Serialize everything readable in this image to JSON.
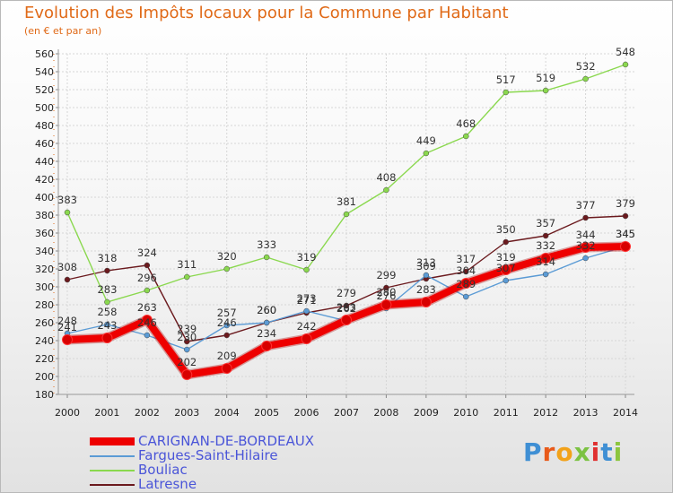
{
  "header": {
    "title": "Evolution des Impôts locaux pour la Commune par Habitant",
    "subtitle": "(en € et par an)"
  },
  "chart_data": {
    "type": "line",
    "title": "Evolution des Impôts locaux pour la Commune par Habitant",
    "ylabel": "(en € et par an)",
    "xlabel": "",
    "ylim": [
      180,
      560
    ],
    "ytick_step": 20,
    "grid": true,
    "categories": [
      "2000",
      "2001",
      "2002",
      "2003",
      "2004",
      "2005",
      "2006",
      "2007",
      "2008",
      "2009",
      "2010",
      "2011",
      "2012",
      "2013",
      "2014"
    ],
    "series": [
      {
        "name": "Latresne",
        "color": "#6b1a1e",
        "values": [
          308,
          318,
          324,
          239,
          246,
          260,
          271,
          279,
          299,
          309,
          317,
          350,
          357,
          377,
          379
        ]
      },
      {
        "name": "Bouliac",
        "color": "#8ad84e",
        "values": [
          383,
          283,
          296,
          311,
          320,
          333,
          319,
          381,
          408,
          449,
          468,
          517,
          519,
          532,
          548
        ]
      },
      {
        "name": "Fargues-Saint-Hilaire",
        "color": "#5b9bd5",
        "values": [
          248,
          258,
          246,
          230,
          257,
          260,
          273,
          262,
          276,
          313,
          289,
          307,
          314,
          332,
          345
        ]
      },
      {
        "name": "CARIGNAN-DE-BORDEAUX",
        "color": "#ee0000",
        "values": [
          241,
          243,
          263,
          202,
          209,
          234,
          242,
          263,
          280,
          283,
          304,
          319,
          332,
          344,
          345
        ]
      }
    ],
    "legend_order": [
      "CARIGNAN-DE-BORDEAUX",
      "Fargues-Saint-Hilaire",
      "Bouliac",
      "Latresne"
    ],
    "legend_position": "bottom-left"
  },
  "logo": {
    "text": "Proxiti",
    "letters": [
      "P",
      "r",
      "o",
      "x",
      "i",
      "t",
      "i"
    ],
    "colors": [
      "#3f8fd4",
      "#e85a1a",
      "#f2a21a",
      "#7cc243",
      "#e03030",
      "#3f8fd4",
      "#8dc63f"
    ]
  }
}
